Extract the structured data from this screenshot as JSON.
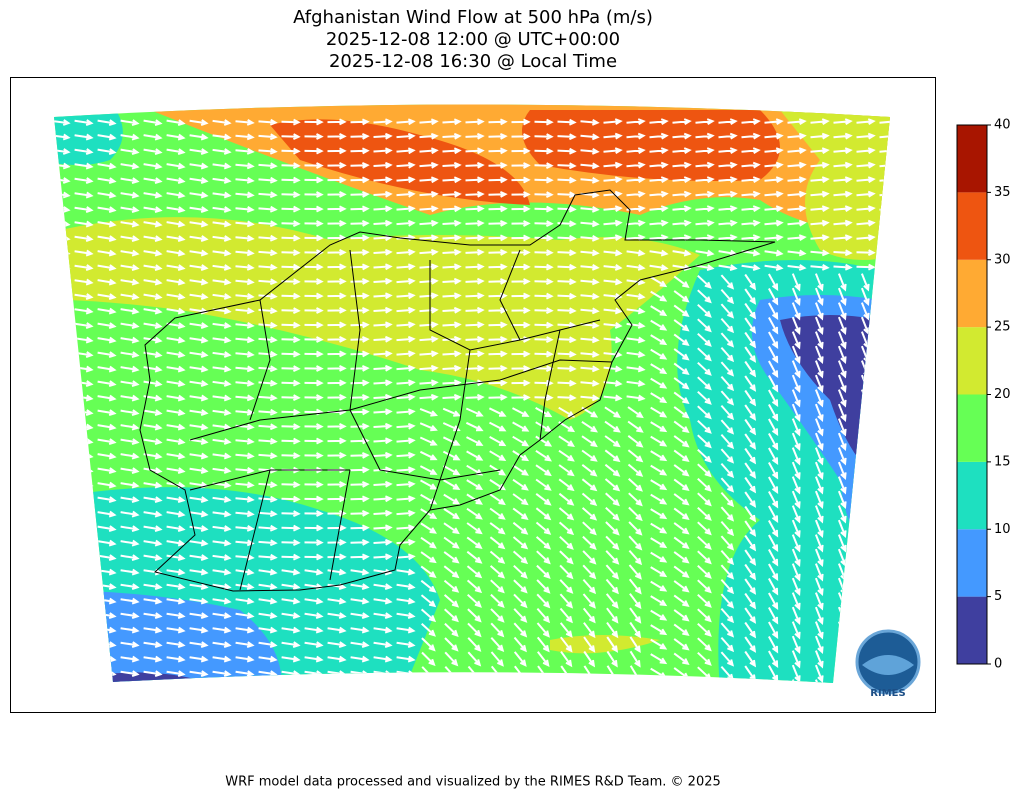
{
  "title": [
    "Afghanistan Wind Flow at 500 hPa (m/s)",
    "2025-12-08 12:00 @ UTC+00:00",
    "2025-12-08 16:30 @ Local Time"
  ],
  "colorbar": {
    "levels": [
      0,
      5,
      10,
      15,
      20,
      25,
      30,
      35,
      40
    ],
    "colors": [
      "#3f3f9f",
      "#4499ff",
      "#1ee0c0",
      "#66ff55",
      "#d2ea30",
      "#ffaa33",
      "#ee5511",
      "#a81500"
    ]
  },
  "logo": "RIMES",
  "footer": "WRF model data processed and visualized by the RIMES R&D Team. © 2025"
}
